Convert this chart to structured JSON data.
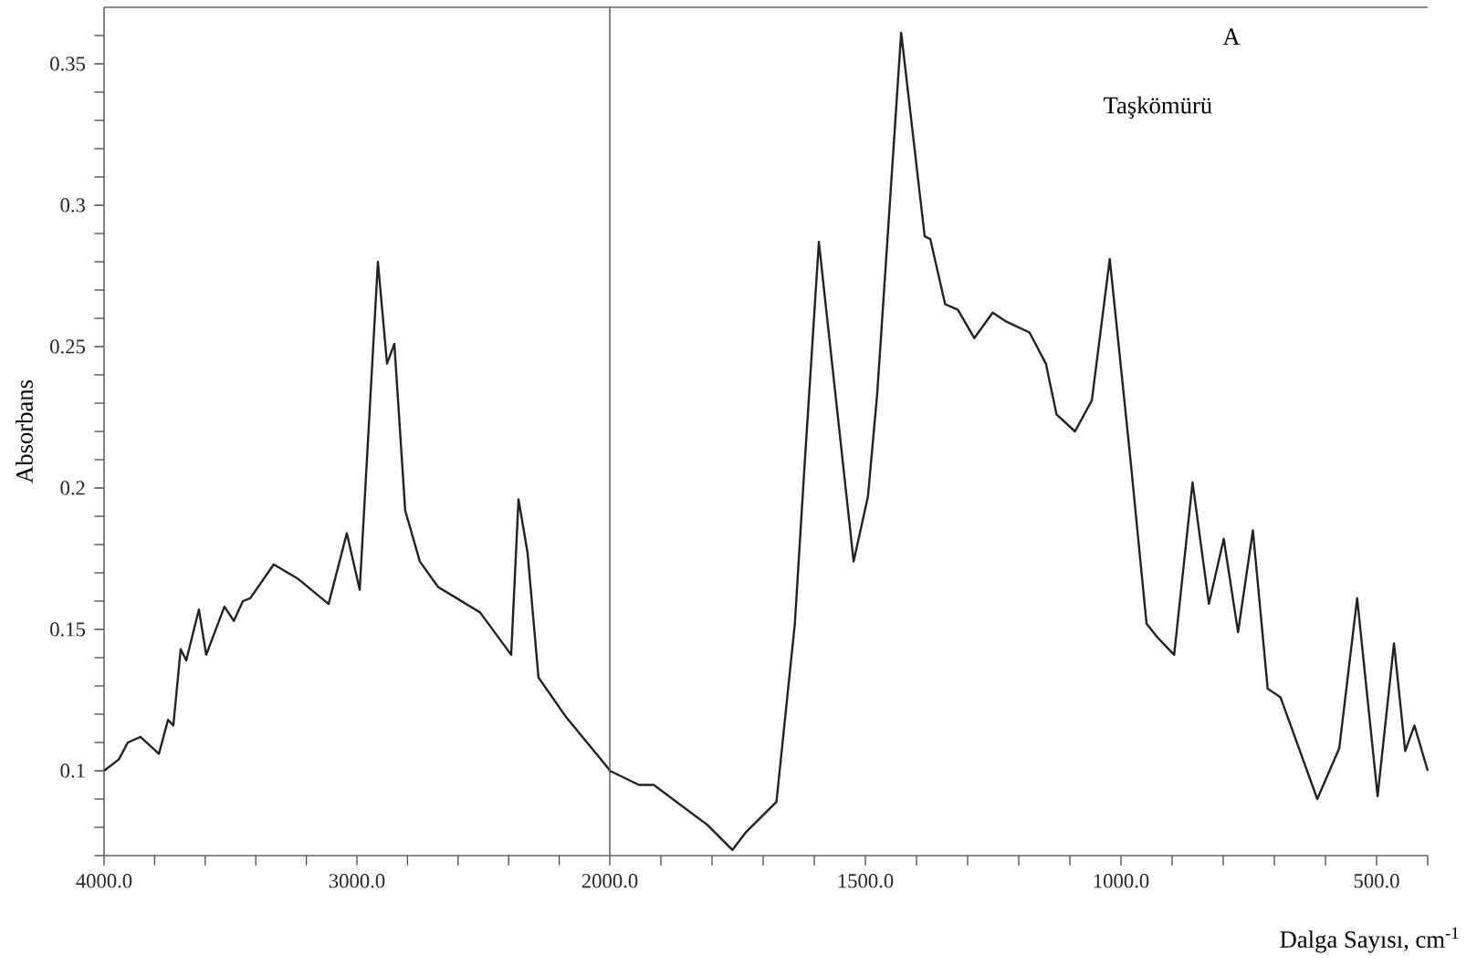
{
  "chart_data": [
    {
      "type": "line",
      "ylabel": "Absorbans",
      "color": "#222222",
      "xlim": [
        4000,
        2000
      ],
      "ylim": [
        0.07,
        0.37
      ],
      "xticks": [
        {
          "value": 4000,
          "label": "4000.0"
        },
        {
          "value": 3800,
          "label": null
        },
        {
          "value": 3600,
          "label": null
        },
        {
          "value": 3400,
          "label": null
        },
        {
          "value": 3200,
          "label": null
        },
        {
          "value": 3000,
          "label": "3000.0"
        },
        {
          "value": 2800,
          "label": null
        },
        {
          "value": 2600,
          "label": null
        },
        {
          "value": 2400,
          "label": null
        },
        {
          "value": 2200,
          "label": null
        },
        {
          "value": 2000,
          "label": "2000.0"
        }
      ],
      "yticks": [
        {
          "value": 0.07,
          "label": null
        },
        {
          "value": 0.08,
          "label": null
        },
        {
          "value": 0.09,
          "label": null
        },
        0.1,
        {
          "value": 0.11,
          "label": null
        },
        {
          "value": 0.12,
          "label": null
        },
        {
          "value": 0.13,
          "label": null
        },
        {
          "value": 0.14,
          "label": null
        },
        0.15,
        {
          "value": 0.16,
          "label": null
        },
        {
          "value": 0.17,
          "label": null
        },
        {
          "value": 0.18,
          "label": null
        },
        {
          "value": 0.19,
          "label": null
        },
        0.2,
        {
          "value": 0.21,
          "label": null
        },
        {
          "value": 0.22,
          "label": null
        },
        {
          "value": 0.23,
          "label": null
        },
        {
          "value": 0.24,
          "label": null
        },
        0.25,
        {
          "value": 0.26,
          "label": null
        },
        {
          "value": 0.27,
          "label": null
        },
        {
          "value": 0.28,
          "label": null
        },
        {
          "value": 0.29,
          "label": null
        },
        0.3,
        {
          "value": 0.31,
          "label": null
        },
        {
          "value": 0.32,
          "label": null
        },
        {
          "value": 0.33,
          "label": null
        },
        {
          "value": 0.34,
          "label": null
        },
        0.35,
        {
          "value": 0.36,
          "label": null
        }
      ],
      "x": [
        4000,
        3942,
        3906,
        3856,
        3783,
        3747,
        3726,
        3697,
        3675,
        3625,
        3596,
        3524,
        3487,
        3451,
        3422,
        3329,
        3235,
        3112,
        3040,
        2989,
        2917,
        2881,
        2852,
        2809,
        2751,
        2679,
        2513,
        2390,
        2361,
        2325,
        2282,
        2173,
        2007,
        2000
      ],
      "values": [
        0.1,
        0.104,
        0.11,
        0.112,
        0.106,
        0.118,
        0.116,
        0.143,
        0.139,
        0.157,
        0.141,
        0.158,
        0.153,
        0.16,
        0.161,
        0.173,
        0.168,
        0.159,
        0.184,
        0.164,
        0.28,
        0.244,
        0.251,
        0.192,
        0.174,
        0.165,
        0.156,
        0.141,
        0.196,
        0.177,
        0.133,
        0.119,
        0.101,
        0.1
      ]
    },
    {
      "type": "line",
      "xlabel": "Dalga Sayısı, cm$^{-1}$",
      "annotations": [
        "A",
        "Taşkömürü"
      ],
      "color": "#222222",
      "tick_labels": "x",
      "xlim": [
        2000,
        400
      ],
      "ylim": [
        0.07,
        0.37
      ],
      "xticks": [
        {
          "value": 1900,
          "label": null
        },
        {
          "value": 1800,
          "label": null
        },
        {
          "value": 1700,
          "label": null
        },
        {
          "value": 1600,
          "label": null
        },
        {
          "value": 1500,
          "label": "1500.0"
        },
        {
          "value": 1400,
          "label": null
        },
        {
          "value": 1300,
          "label": null
        },
        {
          "value": 1200,
          "label": null
        },
        {
          "value": 1100,
          "label": null
        },
        {
          "value": 1000,
          "label": "1000.0"
        },
        {
          "value": 900,
          "label": null
        },
        {
          "value": 800,
          "label": null
        },
        {
          "value": 700,
          "label": null
        },
        {
          "value": 600,
          "label": null
        },
        {
          "value": 500,
          "label": "500.0"
        },
        {
          "value": 400,
          "label": null
        }
      ],
      "x": [
        2000,
        1943,
        1914,
        1810,
        1760,
        1735,
        1674,
        1638,
        1620,
        1591,
        1523,
        1495,
        1477,
        1430,
        1384,
        1373,
        1344,
        1319,
        1287,
        1251,
        1226,
        1179,
        1147,
        1126,
        1090,
        1057,
        1022,
        982,
        950,
        928,
        896,
        860,
        828,
        799,
        771,
        742,
        713,
        688,
        616,
        573,
        538,
        498,
        466,
        444,
        426,
        400
      ],
      "values": [
        0.1,
        0.095,
        0.095,
        0.081,
        0.072,
        0.078,
        0.089,
        0.152,
        0.205,
        0.287,
        0.174,
        0.197,
        0.233,
        0.361,
        0.289,
        0.288,
        0.265,
        0.263,
        0.253,
        0.262,
        0.259,
        0.255,
        0.244,
        0.226,
        0.22,
        0.231,
        0.281,
        0.211,
        0.152,
        0.147,
        0.141,
        0.202,
        0.159,
        0.182,
        0.149,
        0.185,
        0.129,
        0.126,
        0.09,
        0.108,
        0.161,
        0.091,
        0.145,
        0.107,
        0.116,
        0.1
      ]
    }
  ]
}
